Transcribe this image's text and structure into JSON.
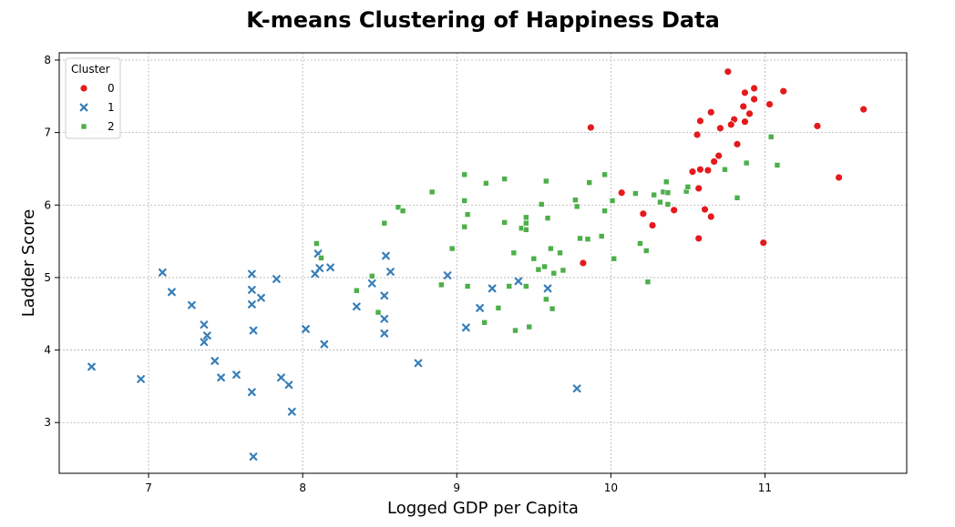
{
  "chart_data": {
    "type": "scatter",
    "title": "K-means Clustering of Happiness Data",
    "xlabel": "Logged GDP per Capita",
    "ylabel": "Ladder Score",
    "xlim": [
      6.42,
      11.92
    ],
    "ylim": [
      2.3,
      8.1
    ],
    "x_ticks": [
      7,
      8,
      9,
      10,
      11
    ],
    "y_ticks": [
      3,
      4,
      5,
      6,
      7,
      8
    ],
    "grid": true,
    "legend": {
      "title": "Cluster",
      "position": "top-left"
    },
    "series": [
      {
        "name": "0",
        "color": "#e41a1c",
        "marker": "circle",
        "points": [
          [
            10.76,
            7.84
          ],
          [
            11.12,
            7.57
          ],
          [
            10.87,
            7.55
          ],
          [
            10.93,
            7.61
          ],
          [
            10.93,
            7.46
          ],
          [
            11.03,
            7.39
          ],
          [
            10.86,
            7.36
          ],
          [
            11.64,
            7.32
          ],
          [
            10.65,
            7.28
          ],
          [
            10.9,
            7.26
          ],
          [
            10.58,
            7.16
          ],
          [
            10.8,
            7.18
          ],
          [
            10.87,
            7.15
          ],
          [
            10.78,
            7.11
          ],
          [
            11.34,
            7.09
          ],
          [
            9.87,
            7.07
          ],
          [
            10.71,
            7.06
          ],
          [
            10.56,
            6.97
          ],
          [
            10.82,
            6.84
          ],
          [
            10.7,
            6.68
          ],
          [
            10.67,
            6.6
          ],
          [
            10.58,
            6.49
          ],
          [
            10.63,
            6.48
          ],
          [
            10.53,
            6.46
          ],
          [
            11.48,
            6.38
          ],
          [
            10.57,
            6.23
          ],
          [
            10.07,
            6.17
          ],
          [
            10.41,
            5.93
          ],
          [
            10.61,
            5.94
          ],
          [
            10.21,
            5.88
          ],
          [
            10.65,
            5.84
          ],
          [
            10.27,
            5.72
          ],
          [
            10.57,
            5.54
          ],
          [
            10.99,
            5.48
          ],
          [
            9.82,
            5.2
          ]
        ]
      },
      {
        "name": "1",
        "color": "#377eb8",
        "marker": "x",
        "points": [
          [
            6.63,
            3.77
          ],
          [
            6.95,
            3.6
          ],
          [
            7.09,
            5.07
          ],
          [
            7.15,
            4.8
          ],
          [
            7.28,
            4.62
          ],
          [
            7.36,
            4.35
          ],
          [
            7.38,
            4.2
          ],
          [
            7.36,
            4.11
          ],
          [
            7.43,
            3.85
          ],
          [
            7.47,
            3.62
          ],
          [
            7.57,
            3.66
          ],
          [
            7.67,
            5.05
          ],
          [
            7.67,
            4.83
          ],
          [
            7.67,
            4.63
          ],
          [
            7.68,
            4.27
          ],
          [
            7.67,
            3.42
          ],
          [
            7.68,
            2.53
          ],
          [
            7.73,
            4.72
          ],
          [
            7.83,
            4.98
          ],
          [
            7.86,
            3.62
          ],
          [
            7.91,
            3.52
          ],
          [
            7.93,
            3.15
          ],
          [
            8.02,
            4.29
          ],
          [
            8.08,
            5.05
          ],
          [
            8.1,
            5.33
          ],
          [
            8.11,
            5.13
          ],
          [
            8.14,
            4.08
          ],
          [
            8.18,
            5.14
          ],
          [
            8.35,
            4.6
          ],
          [
            8.45,
            4.92
          ],
          [
            8.53,
            4.75
          ],
          [
            8.54,
            5.3
          ],
          [
            8.53,
            4.43
          ],
          [
            8.53,
            4.23
          ],
          [
            8.57,
            5.08
          ],
          [
            8.75,
            3.82
          ],
          [
            8.94,
            5.03
          ],
          [
            9.06,
            4.31
          ],
          [
            9.15,
            4.58
          ],
          [
            9.23,
            4.85
          ],
          [
            9.4,
            4.95
          ],
          [
            9.59,
            4.85
          ],
          [
            9.78,
            3.47
          ]
        ]
      },
      {
        "name": "2",
        "color": "#4daf4a",
        "marker": "square",
        "points": [
          [
            8.09,
            5.47
          ],
          [
            8.12,
            5.27
          ],
          [
            8.35,
            4.82
          ],
          [
            8.45,
            5.02
          ],
          [
            8.49,
            4.52
          ],
          [
            8.53,
            5.75
          ],
          [
            8.62,
            5.97
          ],
          [
            8.65,
            5.92
          ],
          [
            8.84,
            6.18
          ],
          [
            8.9,
            4.9
          ],
          [
            8.97,
            5.4
          ],
          [
            9.05,
            5.7
          ],
          [
            9.05,
            6.06
          ],
          [
            9.05,
            6.42
          ],
          [
            9.07,
            5.87
          ],
          [
            9.07,
            4.88
          ],
          [
            9.18,
            4.38
          ],
          [
            9.19,
            6.3
          ],
          [
            9.27,
            4.58
          ],
          [
            9.31,
            5.76
          ],
          [
            9.31,
            6.36
          ],
          [
            9.34,
            4.88
          ],
          [
            9.37,
            5.34
          ],
          [
            9.38,
            4.27
          ],
          [
            9.42,
            5.68
          ],
          [
            9.45,
            5.83
          ],
          [
            9.45,
            5.75
          ],
          [
            9.45,
            5.66
          ],
          [
            9.45,
            4.88
          ],
          [
            9.47,
            4.32
          ],
          [
            9.5,
            5.26
          ],
          [
            9.53,
            5.11
          ],
          [
            9.55,
            6.01
          ],
          [
            9.57,
            5.15
          ],
          [
            9.58,
            4.7
          ],
          [
            9.58,
            6.33
          ],
          [
            9.59,
            5.82
          ],
          [
            9.61,
            5.4
          ],
          [
            9.62,
            4.57
          ],
          [
            9.63,
            5.06
          ],
          [
            9.67,
            5.34
          ],
          [
            9.69,
            5.1
          ],
          [
            9.77,
            6.07
          ],
          [
            9.78,
            5.98
          ],
          [
            9.8,
            5.54
          ],
          [
            9.85,
            5.53
          ],
          [
            9.86,
            6.31
          ],
          [
            9.94,
            5.57
          ],
          [
            9.96,
            5.92
          ],
          [
            9.96,
            6.42
          ],
          [
            10.01,
            6.06
          ],
          [
            10.02,
            5.26
          ],
          [
            10.16,
            6.16
          ],
          [
            10.19,
            5.47
          ],
          [
            10.23,
            5.37
          ],
          [
            10.24,
            4.94
          ],
          [
            10.28,
            6.14
          ],
          [
            10.32,
            6.04
          ],
          [
            10.34,
            6.18
          ],
          [
            10.37,
            6.17
          ],
          [
            10.36,
            6.32
          ],
          [
            10.37,
            6.01
          ],
          [
            10.49,
            6.19
          ],
          [
            10.5,
            6.25
          ],
          [
            10.74,
            6.49
          ],
          [
            10.82,
            6.1
          ],
          [
            10.88,
            6.58
          ],
          [
            11.04,
            6.94
          ],
          [
            11.08,
            6.55
          ]
        ]
      }
    ]
  }
}
